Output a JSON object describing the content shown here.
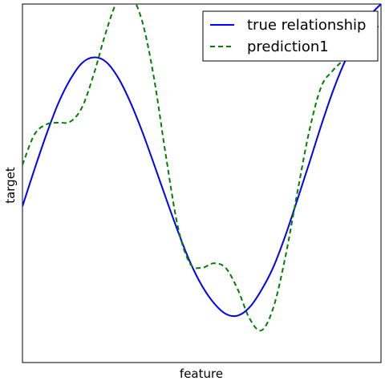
{
  "chart_data": {
    "type": "line",
    "title": "",
    "xlabel": "feature",
    "ylabel": "target",
    "xlim": [
      0,
      6
    ],
    "ylim": [
      -1.9,
      2.0
    ],
    "grid": false,
    "legend_position": "top-right",
    "series": [
      {
        "name": "true relationship",
        "color": "#0000ff",
        "style": "solid",
        "x": [
          0.0,
          0.2,
          0.4,
          0.6,
          0.8,
          1.0,
          1.2,
          1.4,
          1.6,
          1.8,
          2.0,
          2.2,
          2.4,
          2.6,
          2.8,
          3.0,
          3.2,
          3.4,
          3.6,
          3.8,
          4.0,
          4.2,
          4.4,
          4.6,
          4.8,
          5.0,
          5.2,
          5.4,
          5.6,
          5.8,
          6.0
        ],
        "y": [
          -0.2,
          0.2,
          0.58,
          0.92,
          1.18,
          1.36,
          1.42,
          1.37,
          1.2,
          0.94,
          0.62,
          0.26,
          -0.11,
          -0.47,
          -0.8,
          -1.06,
          -1.25,
          -1.37,
          -1.39,
          -1.3,
          -1.11,
          -0.86,
          -0.52,
          -0.13,
          0.27,
          0.68,
          1.06,
          1.38,
          1.62,
          1.86,
          2.0
        ]
      },
      {
        "name": "prediction1",
        "color": "#008000",
        "style": "dashed",
        "x": [
          0.0,
          0.2,
          0.4,
          0.6,
          0.8,
          1.0,
          1.2,
          1.4,
          1.6,
          1.8,
          2.0,
          2.2,
          2.4,
          2.6,
          2.8,
          3.0,
          3.2,
          3.4,
          3.6,
          3.8,
          4.0,
          4.2,
          4.4,
          4.6,
          4.8,
          5.0,
          5.2,
          5.4,
          5.6,
          5.8,
          6.0
        ],
        "y": [
          0.25,
          0.58,
          0.69,
          0.71,
          0.72,
          0.88,
          1.25,
          1.7,
          2.05,
          2.1,
          1.82,
          1.2,
          0.35,
          -0.42,
          -0.82,
          -0.87,
          -0.82,
          -0.87,
          -1.1,
          -1.42,
          -1.55,
          -1.3,
          -0.75,
          -0.05,
          0.62,
          1.1,
          1.28,
          1.42,
          1.65,
          1.75,
          1.75
        ]
      }
    ]
  }
}
